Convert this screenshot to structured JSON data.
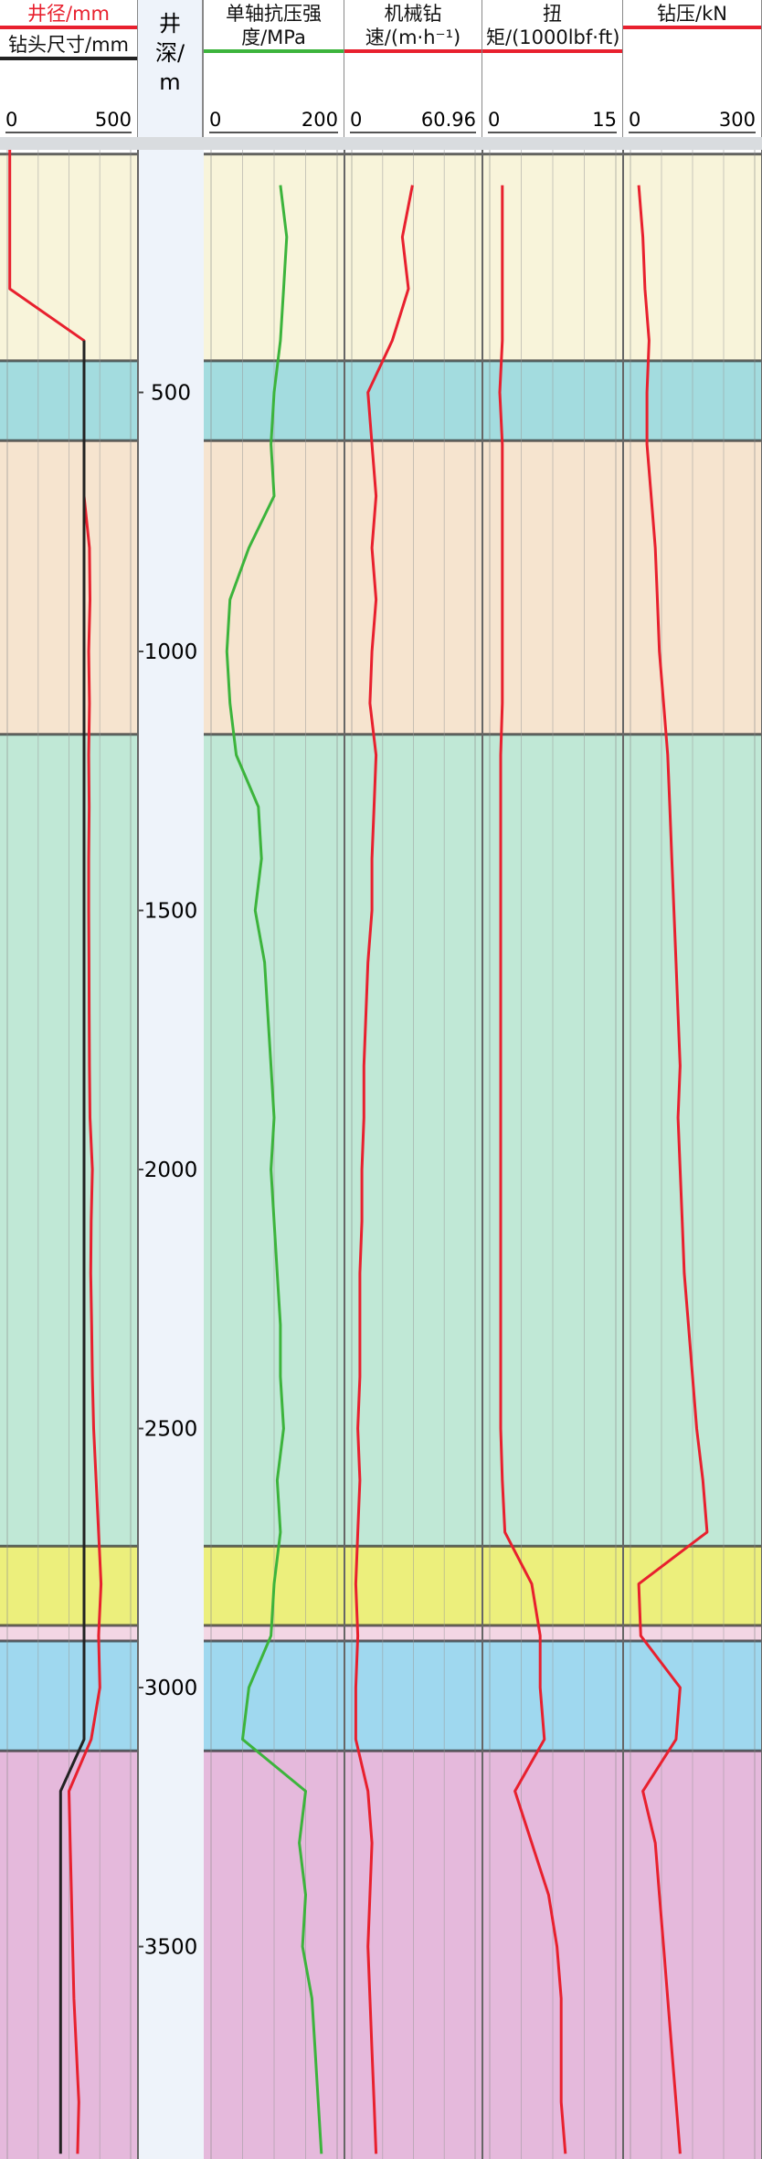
{
  "chart_data": {
    "type": "well-log",
    "depth_label": "井深/m",
    "ylim": [
      0,
      3910
    ],
    "yticks": [
      500,
      1000,
      1500,
      2000,
      2500,
      3000,
      3500
    ],
    "depth": [
      0,
      100,
      200,
      300,
      400,
      500,
      600,
      700,
      800,
      900,
      1000,
      1100,
      1200,
      1300,
      1400,
      1500,
      1600,
      1700,
      1800,
      1900,
      2000,
      2100,
      2200,
      2300,
      2400,
      2500,
      2600,
      2700,
      2800,
      2900,
      3000,
      3100,
      3200,
      3300,
      3400,
      3500,
      3600,
      3700,
      3800,
      3900
    ],
    "zones": [
      {
        "top": 40,
        "bottom": 439,
        "color": "#f8f4da"
      },
      {
        "top": 439,
        "bottom": 593,
        "color": "#a3dcdf"
      },
      {
        "top": 593,
        "bottom": 1160,
        "color": "#f6e4cf"
      },
      {
        "top": 1160,
        "bottom": 2727,
        "color": "#c0e8d6"
      },
      {
        "top": 2727,
        "bottom": 2880,
        "color": "#ecef7c"
      },
      {
        "top": 2880,
        "bottom": 2910,
        "color": "#f3d6e4"
      },
      {
        "top": 2910,
        "bottom": 3122,
        "color": "#9fd8ef"
      },
      {
        "top": 3122,
        "bottom": 3910,
        "color": "#e5b9dc"
      }
    ],
    "tracks": [
      {
        "xlim": [
          0,
          500
        ],
        "xticks": [
          0,
          500
        ],
        "series": [
          {
            "name": "井径/mm",
            "color": "#e8202e",
            "values": [
              10,
              10,
              10,
              10,
              311,
              311,
              311,
              311,
              333,
              335,
              330,
              333,
              330,
              332,
              330,
              330,
              331,
              332,
              333,
              335,
              345,
              340,
              338,
              342,
              345,
              350,
              360,
              370,
              380,
              370,
              375,
              340,
              250,
              255,
              260,
              265,
              270,
              280,
              290,
              285
            ]
          },
          {
            "name": "钻头尺寸/mm",
            "color": "#222222",
            "values": [
              null,
              null,
              null,
              null,
              311,
              311,
              311,
              311,
              311,
              311,
              311,
              311,
              311,
              311,
              311,
              311,
              311,
              311,
              311,
              311,
              311,
              311,
              311,
              311,
              311,
              311,
              311,
              311,
              311,
              311,
              311,
              311,
              216,
              216,
              216,
              216,
              216,
              216,
              216,
              216
            ]
          }
        ]
      },
      {
        "xlim": [
          0,
          200
        ],
        "xticks": [
          0,
          200
        ],
        "series": [
          {
            "name": "单轴抗压强度/MPa",
            "color": "#3cb43c",
            "values": [
              null,
              110,
              120,
              115,
              110,
              100,
              95,
              100,
              60,
              30,
              25,
              30,
              40,
              75,
              80,
              70,
              85,
              90,
              95,
              100,
              95,
              100,
              105,
              110,
              110,
              115,
              105,
              110,
              100,
              95,
              60,
              50,
              150,
              140,
              150,
              145,
              160,
              165,
              170,
              175
            ]
          }
        ]
      },
      {
        "xlim": [
          0,
          60.96
        ],
        "xticks": [
          0,
          60.96
        ],
        "series": [
          {
            "name": "机械钻速/(m·h⁻¹)",
            "color": "#e8202e",
            "values": [
              null,
              30,
              25,
              28,
              20,
              8,
              10,
              12,
              10,
              12,
              10,
              9,
              12,
              11,
              10,
              10,
              8,
              7,
              6,
              6,
              5,
              5,
              4,
              4,
              4,
              3,
              4,
              3,
              2,
              3,
              2,
              2,
              8,
              10,
              9,
              8,
              9,
              10,
              11,
              12
            ]
          }
        ]
      },
      {
        "xlim": [
          0,
          15
        ],
        "xticks": [
          0,
          15
        ],
        "series": [
          {
            "name": "扭矩/(1000lbf·ft)",
            "color": "#e8202e",
            "values": [
              null,
              1.5,
              1.5,
              1.5,
              1.5,
              1.2,
              1.5,
              1.5,
              1.5,
              1.5,
              1.5,
              1.5,
              1.3,
              1.3,
              1.3,
              1.3,
              1.3,
              1.3,
              1.3,
              1.3,
              1.3,
              1.3,
              1.3,
              1.3,
              1.3,
              1.3,
              1.5,
              1.8,
              5,
              6,
              6,
              6.5,
              3,
              5,
              7,
              8,
              8.5,
              8.5,
              8.5,
              9
            ]
          }
        ]
      },
      {
        "xlim": [
          0,
          300
        ],
        "xticks": [
          0,
          300
        ],
        "series": [
          {
            "name": "钻压/kN",
            "color": "#e8202e",
            "values": [
              null,
              20,
              30,
              35,
              45,
              40,
              40,
              50,
              60,
              65,
              70,
              80,
              90,
              95,
              100,
              105,
              110,
              115,
              120,
              115,
              120,
              125,
              130,
              140,
              150,
              160,
              175,
              185,
              20,
              25,
              120,
              110,
              30,
              60,
              70,
              80,
              90,
              100,
              110,
              120
            ]
          }
        ]
      }
    ]
  }
}
